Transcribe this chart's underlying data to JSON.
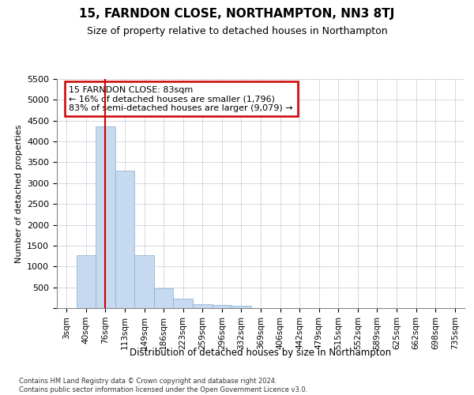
{
  "title": "15, FARNDON CLOSE, NORTHAMPTON, NN3 8TJ",
  "subtitle": "Size of property relative to detached houses in Northampton",
  "xlabel": "Distribution of detached houses by size in Northampton",
  "ylabel": "Number of detached properties",
  "footer_line1": "Contains HM Land Registry data © Crown copyright and database right 2024.",
  "footer_line2": "Contains public sector information licensed under the Open Government Licence v3.0.",
  "annotation_title": "15 FARNDON CLOSE: 83sqm",
  "annotation_line1": "← 16% of detached houses are smaller (1,796)",
  "annotation_line2": "83% of semi-detached houses are larger (9,079) →",
  "bar_categories": [
    "3sqm",
    "40sqm",
    "76sqm",
    "113sqm",
    "149sqm",
    "186sqm",
    "223sqm",
    "259sqm",
    "296sqm",
    "332sqm",
    "369sqm",
    "406sqm",
    "442sqm",
    "479sqm",
    "515sqm",
    "552sqm",
    "589sqm",
    "625sqm",
    "662sqm",
    "698sqm",
    "735sqm"
  ],
  "bar_values": [
    0,
    1270,
    4370,
    3300,
    1270,
    480,
    235,
    100,
    75,
    60,
    0,
    0,
    0,
    0,
    0,
    0,
    0,
    0,
    0,
    0,
    0
  ],
  "bar_color": "#c5d9f0",
  "bar_edge_color": "#8aaecd",
  "vline_color": "#cc0000",
  "vline_x_idx": 2,
  "annotation_box_color": "#cc0000",
  "background_color": "#ffffff",
  "grid_color": "#c8c8d8",
  "ylim": [
    0,
    5500
  ],
  "yticks": [
    0,
    500,
    1000,
    1500,
    2000,
    2500,
    3000,
    3500,
    4000,
    4500,
    5000,
    5500
  ]
}
